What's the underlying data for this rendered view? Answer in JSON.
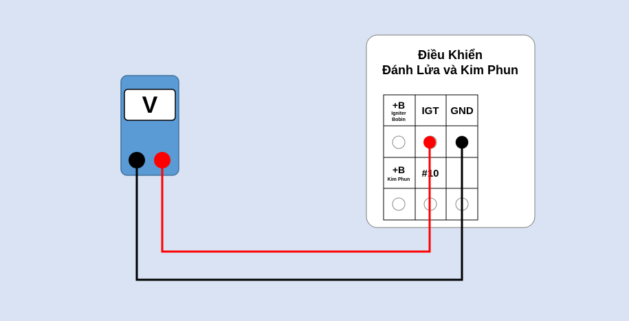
{
  "meter": {
    "display": "V",
    "body_color": "#5b9bd5",
    "probe_black_color": "#000000",
    "probe_red_color": "#ff0000"
  },
  "ecu": {
    "title_line1": "Điều Khiển",
    "title_line2": "Đánh Lửa và Kim Phun",
    "connector": {
      "row1": [
        {
          "main": "+B",
          "sub1": "Igniter",
          "sub2": "Bobin"
        },
        {
          "main": "IGT"
        },
        {
          "main": "GND"
        }
      ],
      "row3": [
        {
          "main": "+B",
          "sub1": "Kim Phun"
        },
        {
          "main": "#10"
        },
        {
          "main": ""
        }
      ]
    }
  },
  "wires": {
    "red_color": "#ff0000",
    "black_color": "#000000"
  }
}
